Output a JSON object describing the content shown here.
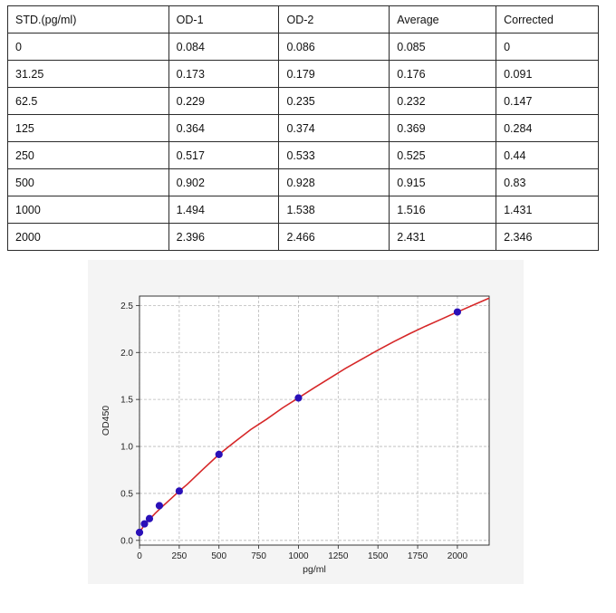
{
  "table": {
    "headers": [
      "STD.(pg/ml)",
      "OD-1",
      "OD-2",
      "Average",
      "Corrected"
    ],
    "rows": [
      [
        "0",
        "0.084",
        "0.086",
        "0.085",
        "0"
      ],
      [
        "31.25",
        "0.173",
        "0.179",
        "0.176",
        "0.091"
      ],
      [
        "62.5",
        "0.229",
        "0.235",
        "0.232",
        "0.147"
      ],
      [
        "125",
        "0.364",
        "0.374",
        "0.369",
        "0.284"
      ],
      [
        "250",
        "0.517",
        "0.533",
        "0.525",
        "0.44"
      ],
      [
        "500",
        "0.902",
        "0.928",
        "0.915",
        "0.83"
      ],
      [
        "1000",
        "1.494",
        "1.538",
        "1.516",
        "1.431"
      ],
      [
        "2000",
        "2.396",
        "2.466",
        "2.431",
        "2.346"
      ]
    ]
  },
  "chart_data": {
    "type": "scatter",
    "xlabel": "pg/ml",
    "ylabel": "OD450",
    "xlim": [
      0,
      2200
    ],
    "ylim": [
      -0.05,
      2.6
    ],
    "x_ticks": [
      "0",
      "250",
      "500",
      "750",
      "1000",
      "1250",
      "1500",
      "1750",
      "2000"
    ],
    "y_ticks": [
      "0.0",
      "0.5",
      "1.0",
      "1.5",
      "2.0",
      "2.5"
    ],
    "grid": true,
    "series": [
      {
        "marker_color": "#2a10b8",
        "x": [
          0,
          31.25,
          62.5,
          125,
          250,
          500,
          1000,
          2000
        ],
        "y": [
          0.085,
          0.176,
          0.232,
          0.369,
          0.525,
          0.915,
          1.516,
          2.431
        ]
      }
    ],
    "fit_curve": {
      "color": "#d62728",
      "x": [
        0,
        25,
        50,
        100,
        150,
        200,
        250,
        300,
        400,
        500,
        600,
        700,
        800,
        900,
        1000,
        1100,
        1200,
        1300,
        1400,
        1500,
        1600,
        1700,
        1800,
        1900,
        2000,
        2100,
        2200
      ],
      "y": [
        0.085,
        0.15,
        0.2,
        0.29,
        0.37,
        0.447,
        0.525,
        0.596,
        0.758,
        0.915,
        1.05,
        1.18,
        1.29,
        1.41,
        1.516,
        1.625,
        1.73,
        1.835,
        1.93,
        2.025,
        2.115,
        2.2,
        2.28,
        2.355,
        2.431,
        2.505,
        2.578
      ]
    }
  }
}
